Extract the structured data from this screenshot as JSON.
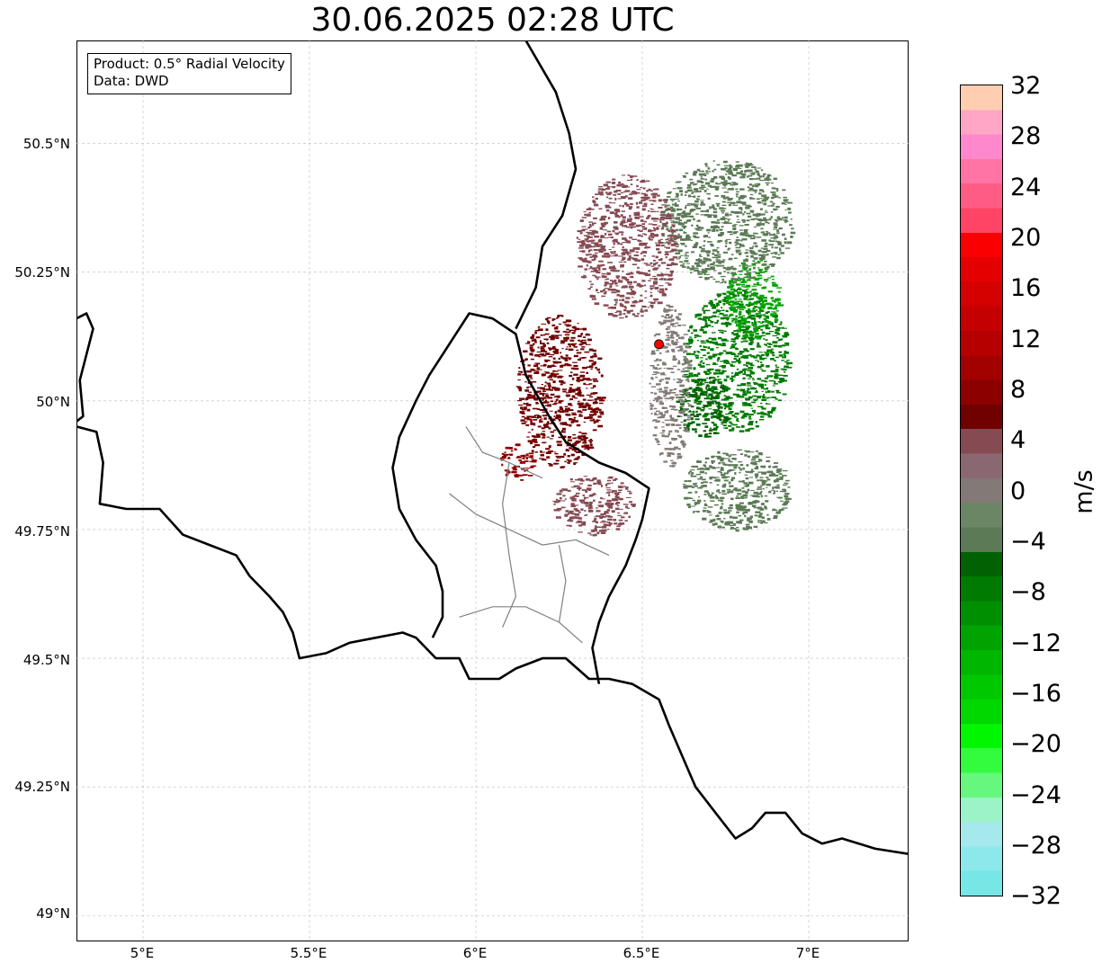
{
  "title": "30.06.2025 02:28 UTC",
  "info": {
    "product": "Product: 0.5° Radial Velocity",
    "source": "Data: DWD"
  },
  "axes": {
    "lon_ticks": [
      "5°E",
      "5.5°E",
      "6°E",
      "6.5°E",
      "7°E"
    ],
    "lat_ticks": [
      "50.5°N",
      "50.25°N",
      "50°N",
      "49.75°N",
      "49.5°N",
      "49.25°N",
      "49°N"
    ]
  },
  "map_extent": {
    "lon_min": 4.8,
    "lon_max": 7.3,
    "lat_min": 48.95,
    "lat_max": 50.7
  },
  "radar_site": {
    "lon": 6.55,
    "lat": 50.11,
    "color": "#ff0000"
  },
  "colorbar": {
    "label": "m/s",
    "min": -32,
    "max": 32,
    "ticks": [
      "32",
      "28",
      "24",
      "20",
      "16",
      "12",
      "8",
      "4",
      "0",
      "−4",
      "−8",
      "−12",
      "−16",
      "−20",
      "−24",
      "−28",
      "−32"
    ],
    "colors": [
      "#76e6e6",
      "#8ce8ea",
      "#a5e9ec",
      "#9cf3c7",
      "#66f87e",
      "#33fc3f",
      "#00f700",
      "#00d800",
      "#00c800",
      "#00b700",
      "#00a300",
      "#008f00",
      "#007a00",
      "#006200",
      "#5b7a55",
      "#6a8664",
      "#837a77",
      "#8a6872",
      "#864a53",
      "#710000",
      "#8d0000",
      "#a30000",
      "#b60000",
      "#c50000",
      "#d50000",
      "#e40000",
      "#fa0000",
      "#ff4466",
      "#ff5c85",
      "#ff74a4",
      "#ff88cd",
      "#ffa5c6",
      "#ffcdb0"
    ]
  },
  "echoes": [
    {
      "name": "inbound-core",
      "color": "#007a00",
      "lon": 6.78,
      "lat": 50.08,
      "rlon": 0.16,
      "rlat": 0.14
    },
    {
      "name": "inbound-dark",
      "color": "#006200",
      "lon": 6.68,
      "lat": 49.99,
      "rlon": 0.08,
      "rlat": 0.06
    },
    {
      "name": "inbound-north",
      "color": "#00a300",
      "lon": 6.83,
      "lat": 50.2,
      "rlon": 0.08,
      "rlat": 0.08
    },
    {
      "name": "inbound-fringe-ne",
      "color": "#5b7a55",
      "lon": 6.75,
      "lat": 50.35,
      "rlon": 0.2,
      "rlat": 0.12
    },
    {
      "name": "inbound-fringe-se",
      "color": "#5b7a55",
      "lon": 6.78,
      "lat": 49.83,
      "rlon": 0.16,
      "rlat": 0.08
    },
    {
      "name": "outbound-core",
      "color": "#710000",
      "lon": 6.25,
      "lat": 50.02,
      "rlon": 0.13,
      "rlat": 0.15
    },
    {
      "name": "outbound-west",
      "color": "#8d0000",
      "lon": 6.12,
      "lat": 49.88,
      "rlon": 0.05,
      "rlat": 0.04
    },
    {
      "name": "outbound-fringe-n",
      "color": "#864a53",
      "lon": 6.45,
      "lat": 50.3,
      "rlon": 0.15,
      "rlat": 0.14
    },
    {
      "name": "outbound-fringe-s",
      "color": "#864a53",
      "lon": 6.35,
      "lat": 49.8,
      "rlon": 0.12,
      "rlat": 0.06
    },
    {
      "name": "zero-line",
      "color": "#837a77",
      "lon": 6.58,
      "lat": 50.03,
      "rlon": 0.06,
      "rlat": 0.16
    }
  ],
  "borders": [
    [
      [
        4.8,
        50.16
      ],
      [
        4.83,
        50.17
      ],
      [
        4.85,
        50.14
      ],
      [
        4.83,
        50.09
      ],
      [
        4.81,
        50.04
      ],
      [
        4.82,
        49.97
      ],
      [
        4.8,
        49.96
      ]
    ],
    [
      [
        4.8,
        49.95
      ],
      [
        4.86,
        49.94
      ],
      [
        4.88,
        49.88
      ],
      [
        4.87,
        49.8
      ],
      [
        4.95,
        49.79
      ],
      [
        5.05,
        49.79
      ],
      [
        5.12,
        49.74
      ],
      [
        5.2,
        49.72
      ],
      [
        5.28,
        49.7
      ],
      [
        5.32,
        49.66
      ],
      [
        5.38,
        49.62
      ],
      [
        5.42,
        49.59
      ],
      [
        5.45,
        49.55
      ],
      [
        5.47,
        49.5
      ],
      [
        5.55,
        49.51
      ],
      [
        5.62,
        49.53
      ],
      [
        5.7,
        49.54
      ],
      [
        5.78,
        49.55
      ],
      [
        5.82,
        49.54
      ],
      [
        5.88,
        49.5
      ],
      [
        5.95,
        49.5
      ],
      [
        5.98,
        49.46
      ],
      [
        6.07,
        49.46
      ],
      [
        6.12,
        49.48
      ],
      [
        6.2,
        49.5
      ],
      [
        6.27,
        49.5
      ],
      [
        6.34,
        49.46
      ],
      [
        6.4,
        49.46
      ],
      [
        6.47,
        49.45
      ],
      [
        6.55,
        49.42
      ],
      [
        6.58,
        49.37
      ],
      [
        6.62,
        49.31
      ],
      [
        6.66,
        49.25
      ],
      [
        6.72,
        49.2
      ],
      [
        6.78,
        49.15
      ],
      [
        6.83,
        49.17
      ],
      [
        6.87,
        49.2
      ],
      [
        6.93,
        49.2
      ],
      [
        6.98,
        49.16
      ],
      [
        7.04,
        49.14
      ],
      [
        7.1,
        49.15
      ],
      [
        7.2,
        49.13
      ],
      [
        7.3,
        49.12
      ]
    ],
    [
      [
        6.37,
        49.45
      ],
      [
        6.35,
        49.52
      ],
      [
        6.37,
        49.57
      ],
      [
        6.4,
        49.62
      ],
      [
        6.45,
        49.68
      ],
      [
        6.48,
        49.73
      ],
      [
        6.5,
        49.77
      ],
      [
        6.52,
        49.83
      ],
      [
        6.45,
        49.86
      ],
      [
        6.37,
        49.88
      ],
      [
        6.27,
        49.92
      ],
      [
        6.22,
        49.97
      ],
      [
        6.15,
        50.05
      ],
      [
        6.12,
        50.13
      ],
      [
        6.05,
        50.16
      ],
      [
        5.98,
        50.17
      ],
      [
        5.93,
        50.12
      ],
      [
        5.86,
        50.05
      ],
      [
        5.82,
        50.0
      ],
      [
        5.77,
        49.93
      ],
      [
        5.75,
        49.87
      ],
      [
        5.77,
        49.79
      ],
      [
        5.82,
        49.73
      ],
      [
        5.88,
        49.68
      ],
      [
        5.9,
        49.63
      ],
      [
        5.9,
        49.58
      ],
      [
        5.87,
        49.54
      ]
    ],
    [
      [
        6.12,
        50.14
      ],
      [
        6.18,
        50.22
      ],
      [
        6.2,
        50.3
      ],
      [
        6.26,
        50.36
      ],
      [
        6.3,
        50.45
      ],
      [
        6.28,
        50.52
      ],
      [
        6.24,
        50.6
      ],
      [
        6.15,
        50.7
      ]
    ]
  ],
  "districts": [
    [
      [
        5.97,
        49.95
      ],
      [
        6.02,
        49.9
      ],
      [
        6.1,
        49.88
      ],
      [
        6.2,
        49.85
      ]
    ],
    [
      [
        5.92,
        49.82
      ],
      [
        6.0,
        49.78
      ],
      [
        6.1,
        49.75
      ],
      [
        6.2,
        49.72
      ],
      [
        6.3,
        49.73
      ],
      [
        6.4,
        49.7
      ]
    ],
    [
      [
        5.95,
        49.58
      ],
      [
        6.05,
        49.6
      ],
      [
        6.15,
        49.6
      ],
      [
        6.25,
        49.57
      ],
      [
        6.32,
        49.53
      ]
    ],
    [
      [
        6.1,
        49.88
      ],
      [
        6.08,
        49.8
      ],
      [
        6.1,
        49.7
      ],
      [
        6.12,
        49.62
      ],
      [
        6.08,
        49.56
      ]
    ],
    [
      [
        6.25,
        49.72
      ],
      [
        6.27,
        49.65
      ],
      [
        6.25,
        49.57
      ]
    ]
  ]
}
